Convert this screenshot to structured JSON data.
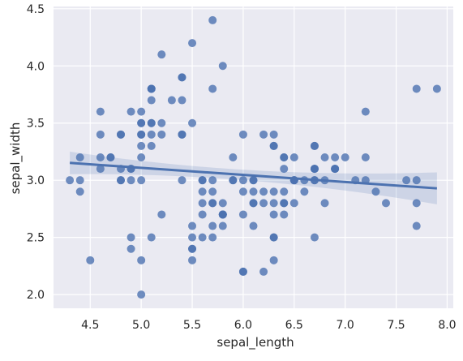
{
  "chart_data": {
    "type": "scatter",
    "title": "",
    "xlabel": "sepal_length",
    "ylabel": "sepal_width",
    "xlim": [
      4.14,
      8.06
    ],
    "ylim": [
      1.88,
      4.52
    ],
    "xticks": [
      4.5,
      5.0,
      5.5,
      6.0,
      6.5,
      7.0,
      7.5,
      8.0
    ],
    "xtick_labels": [
      "4.5",
      "5.0",
      "5.5",
      "6.0",
      "6.5",
      "7.0",
      "7.5",
      "8.0"
    ],
    "yticks": [
      2.0,
      2.5,
      3.0,
      3.5,
      4.0,
      4.5
    ],
    "ytick_labels": [
      "2.0",
      "2.5",
      "3.0",
      "3.5",
      "4.0",
      "4.5"
    ],
    "grid": true,
    "colors": {
      "background": "#EAEAF2",
      "grid": "#FFFFFF",
      "points": "#4C72B0",
      "line": "#4C72B0"
    },
    "series": [
      {
        "points": [
          [
            5.1,
            3.5
          ],
          [
            4.9,
            3.0
          ],
          [
            4.7,
            3.2
          ],
          [
            4.6,
            3.1
          ],
          [
            5.0,
            3.6
          ],
          [
            5.4,
            3.9
          ],
          [
            4.6,
            3.4
          ],
          [
            5.0,
            3.4
          ],
          [
            4.4,
            2.9
          ],
          [
            4.9,
            3.1
          ],
          [
            5.4,
            3.7
          ],
          [
            4.8,
            3.4
          ],
          [
            4.8,
            3.0
          ],
          [
            4.3,
            3.0
          ],
          [
            5.8,
            4.0
          ],
          [
            5.7,
            4.4
          ],
          [
            5.4,
            3.9
          ],
          [
            5.1,
            3.5
          ],
          [
            5.7,
            3.8
          ],
          [
            5.1,
            3.8
          ],
          [
            5.4,
            3.4
          ],
          [
            5.1,
            3.7
          ],
          [
            4.6,
            3.6
          ],
          [
            5.1,
            3.3
          ],
          [
            4.8,
            3.4
          ],
          [
            5.0,
            3.0
          ],
          [
            5.0,
            3.4
          ],
          [
            5.2,
            3.5
          ],
          [
            5.2,
            3.4
          ],
          [
            4.7,
            3.2
          ],
          [
            4.8,
            3.1
          ],
          [
            5.4,
            3.4
          ],
          [
            5.2,
            4.1
          ],
          [
            5.5,
            4.2
          ],
          [
            4.9,
            3.1
          ],
          [
            5.0,
            3.2
          ],
          [
            5.5,
            3.5
          ],
          [
            4.9,
            3.6
          ],
          [
            4.4,
            3.0
          ],
          [
            5.1,
            3.4
          ],
          [
            5.0,
            3.5
          ],
          [
            4.5,
            2.3
          ],
          [
            4.4,
            3.2
          ],
          [
            5.0,
            3.5
          ],
          [
            5.1,
            3.8
          ],
          [
            4.8,
            3.0
          ],
          [
            5.1,
            3.8
          ],
          [
            4.6,
            3.2
          ],
          [
            5.3,
            3.7
          ],
          [
            5.0,
            3.3
          ],
          [
            7.0,
            3.2
          ],
          [
            6.4,
            3.2
          ],
          [
            6.9,
            3.1
          ],
          [
            5.5,
            2.3
          ],
          [
            6.5,
            2.8
          ],
          [
            5.7,
            2.8
          ],
          [
            6.3,
            3.3
          ],
          [
            4.9,
            2.4
          ],
          [
            6.6,
            2.9
          ],
          [
            5.2,
            2.7
          ],
          [
            5.0,
            2.0
          ],
          [
            5.9,
            3.0
          ],
          [
            6.0,
            2.2
          ],
          [
            6.1,
            2.9
          ],
          [
            5.6,
            2.9
          ],
          [
            6.7,
            3.1
          ],
          [
            5.6,
            3.0
          ],
          [
            5.8,
            2.7
          ],
          [
            6.2,
            2.2
          ],
          [
            5.6,
            2.5
          ],
          [
            5.9,
            3.2
          ],
          [
            6.1,
            2.8
          ],
          [
            6.3,
            2.5
          ],
          [
            6.1,
            2.8
          ],
          [
            6.4,
            2.9
          ],
          [
            6.6,
            3.0
          ],
          [
            6.8,
            2.8
          ],
          [
            6.7,
            3.0
          ],
          [
            6.0,
            2.9
          ],
          [
            5.7,
            2.6
          ],
          [
            5.5,
            2.4
          ],
          [
            5.5,
            2.4
          ],
          [
            5.8,
            2.7
          ],
          [
            6.0,
            2.7
          ],
          [
            5.4,
            3.0
          ],
          [
            6.0,
            3.4
          ],
          [
            6.7,
            3.1
          ],
          [
            6.3,
            2.3
          ],
          [
            5.6,
            3.0
          ],
          [
            5.5,
            2.5
          ],
          [
            5.5,
            2.6
          ],
          [
            6.1,
            3.0
          ],
          [
            5.8,
            2.6
          ],
          [
            5.0,
            2.3
          ],
          [
            5.6,
            2.7
          ],
          [
            5.7,
            3.0
          ],
          [
            5.7,
            2.9
          ],
          [
            6.2,
            2.9
          ],
          [
            5.1,
            2.5
          ],
          [
            5.7,
            2.8
          ],
          [
            6.3,
            3.3
          ],
          [
            5.8,
            2.7
          ],
          [
            7.1,
            3.0
          ],
          [
            6.3,
            2.9
          ],
          [
            6.5,
            3.0
          ],
          [
            7.6,
            3.0
          ],
          [
            4.9,
            2.5
          ],
          [
            7.3,
            2.9
          ],
          [
            6.7,
            2.5
          ],
          [
            7.2,
            3.6
          ],
          [
            6.5,
            3.2
          ],
          [
            6.4,
            2.7
          ],
          [
            6.8,
            3.0
          ],
          [
            5.7,
            2.5
          ],
          [
            5.8,
            2.8
          ],
          [
            6.4,
            3.2
          ],
          [
            6.5,
            3.0
          ],
          [
            7.7,
            3.8
          ],
          [
            7.7,
            2.6
          ],
          [
            6.0,
            2.2
          ],
          [
            6.9,
            3.2
          ],
          [
            5.6,
            2.8
          ],
          [
            7.7,
            2.8
          ],
          [
            6.3,
            2.7
          ],
          [
            6.7,
            3.3
          ],
          [
            7.2,
            3.2
          ],
          [
            6.2,
            2.8
          ],
          [
            6.1,
            3.0
          ],
          [
            6.4,
            2.8
          ],
          [
            7.2,
            3.0
          ],
          [
            7.4,
            2.8
          ],
          [
            7.9,
            3.8
          ],
          [
            6.4,
            2.8
          ],
          [
            6.3,
            2.8
          ],
          [
            6.1,
            2.6
          ],
          [
            7.7,
            3.0
          ],
          [
            6.3,
            3.4
          ],
          [
            6.4,
            3.1
          ],
          [
            6.0,
            3.0
          ],
          [
            6.9,
            3.1
          ],
          [
            6.7,
            3.1
          ],
          [
            6.9,
            3.1
          ],
          [
            5.8,
            2.7
          ],
          [
            6.8,
            3.2
          ],
          [
            6.7,
            3.3
          ],
          [
            6.7,
            3.0
          ],
          [
            6.3,
            2.5
          ],
          [
            6.5,
            3.0
          ],
          [
            6.2,
            3.4
          ],
          [
            5.9,
            3.0
          ]
        ]
      }
    ],
    "regression": {
      "x_range": [
        4.3,
        7.9
      ],
      "slope": -0.0619,
      "intercept": 3.418,
      "ci_halfwidth_ends": 0.14,
      "ci_halfwidth_center": 0.045,
      "x_mean": 5.843
    }
  }
}
